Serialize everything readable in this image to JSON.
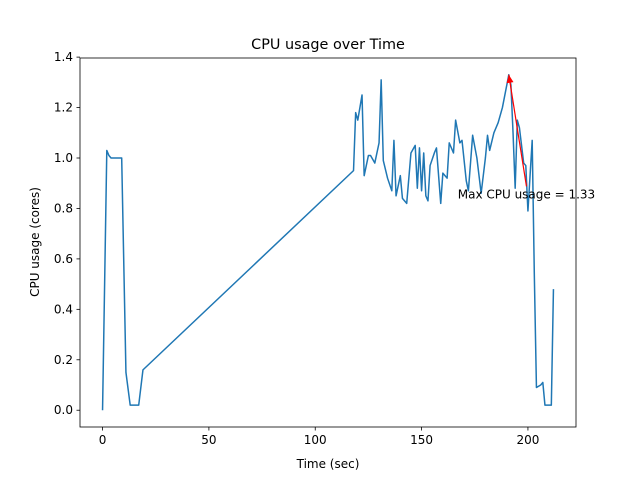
{
  "chart_data": {
    "type": "line",
    "title": "CPU usage over Time",
    "xlabel": "Time (sec)",
    "ylabel": "CPU usage (cores)",
    "x": [
      0,
      2,
      3,
      4,
      9,
      11,
      13,
      17,
      19,
      118,
      119,
      120,
      122,
      123,
      125,
      126,
      128,
      130,
      131,
      132,
      134,
      136,
      137,
      138,
      140,
      141,
      143,
      145,
      147,
      148,
      149,
      150,
      151,
      152,
      153,
      154,
      156,
      157,
      159,
      160,
      162,
      163,
      165,
      166,
      168,
      169,
      171,
      172,
      174,
      176,
      178,
      180,
      181,
      182,
      184,
      186,
      188,
      191,
      192,
      193,
      194,
      195,
      196,
      198,
      199,
      200,
      201,
      202,
      203,
      204,
      206,
      207,
      208,
      210,
      211,
      212
    ],
    "values": [
      0.0,
      1.03,
      1.01,
      1.0,
      1.0,
      0.15,
      0.02,
      0.02,
      0.16,
      0.95,
      1.18,
      1.15,
      1.25,
      0.93,
      1.01,
      1.01,
      0.98,
      1.06,
      1.31,
      0.99,
      0.92,
      0.87,
      1.07,
      0.85,
      0.93,
      0.84,
      0.82,
      1.02,
      1.05,
      0.88,
      1.04,
      0.87,
      1.02,
      0.85,
      0.83,
      0.97,
      1.02,
      1.04,
      0.82,
      0.94,
      0.92,
      1.06,
      1.02,
      1.15,
      1.06,
      1.07,
      0.91,
      0.87,
      1.09,
      1.0,
      0.86,
      1.0,
      1.09,
      1.03,
      1.1,
      1.14,
      1.2,
      1.33,
      1.29,
      1.1,
      0.88,
      1.15,
      1.12,
      0.98,
      0.97,
      0.79,
      0.93,
      1.07,
      0.54,
      0.09,
      0.1,
      0.11,
      0.02,
      0.02,
      0.02,
      0.48
    ],
    "color": "#1f77b4",
    "xlim": [
      -10.6,
      222.6
    ],
    "xticks": [
      0,
      50,
      100,
      150,
      200
    ],
    "ylim": [
      -0.0665,
      1.3965
    ],
    "yticks": [
      {
        "value": 0,
        "label": "0.0"
      },
      0.2,
      0.4,
      0.6,
      0.8,
      {
        "value": 1,
        "label": "1.0"
      },
      1.2,
      1.4
    ],
    "annotation": {
      "text": "Max CPU usage = 1.33",
      "xy": [
        191,
        1.33
      ],
      "xytext": [
        167,
        0.84
      ],
      "color": "red"
    }
  }
}
